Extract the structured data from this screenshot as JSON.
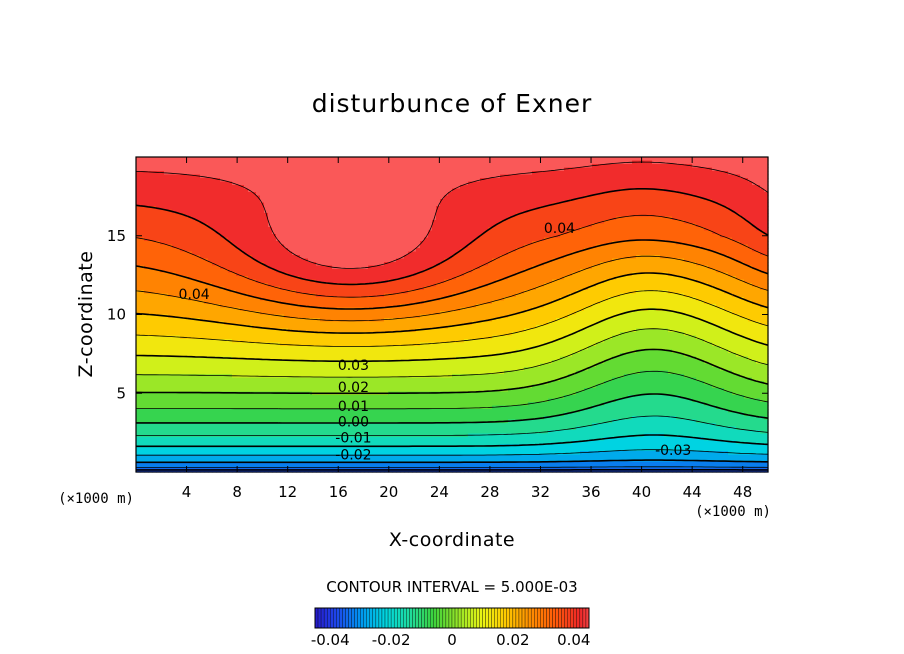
{
  "chart_data": {
    "type": "contour",
    "title": "disturbunce of Exner",
    "xlabel": "X-coordinate",
    "ylabel": "Z-coordinate",
    "x_unit_label": "(×1000 m)",
    "y_unit_label": "(×1000 m)",
    "xlim": [
      0,
      50
    ],
    "ylim": [
      0,
      20
    ],
    "xticks": [
      4,
      8,
      12,
      16,
      20,
      24,
      28,
      32,
      36,
      40,
      44,
      48
    ],
    "yticks": [
      5,
      10,
      15
    ],
    "contour_interval_text": "CONTOUR INTERVAL = 5.000E-03",
    "contour_interval": 0.005,
    "field_range": [
      -0.045,
      0.055
    ],
    "negative_contours_dashed": true,
    "contour_labels": [
      {
        "text": "0.04",
        "x": 33.5,
        "z": 15.5
      },
      {
        "text": "0.04",
        "x": 4.6,
        "z": 11.3
      },
      {
        "text": "0.03",
        "x": 17.2,
        "z": 6.8
      },
      {
        "text": "0.02",
        "x": 17.2,
        "z": 5.4
      },
      {
        "text": "0.01",
        "x": 17.2,
        "z": 4.2
      },
      {
        "text": "0.00",
        "x": 17.2,
        "z": 3.2
      },
      {
        "text": "-0.01",
        "x": 17.2,
        "z": 2.2
      },
      {
        "text": "-0.02",
        "x": 17.2,
        "z": 1.1
      },
      {
        "text": "-0.03",
        "x": 42.5,
        "z": 1.4
      }
    ],
    "colorbar": {
      "range": [
        -0.045,
        0.045
      ],
      "tick_labels": [
        "-0.04",
        "-0.02",
        "0",
        "0.02",
        "0.04"
      ],
      "tick_values": [
        -0.04,
        -0.02,
        0,
        0.02,
        0.04
      ]
    }
  }
}
